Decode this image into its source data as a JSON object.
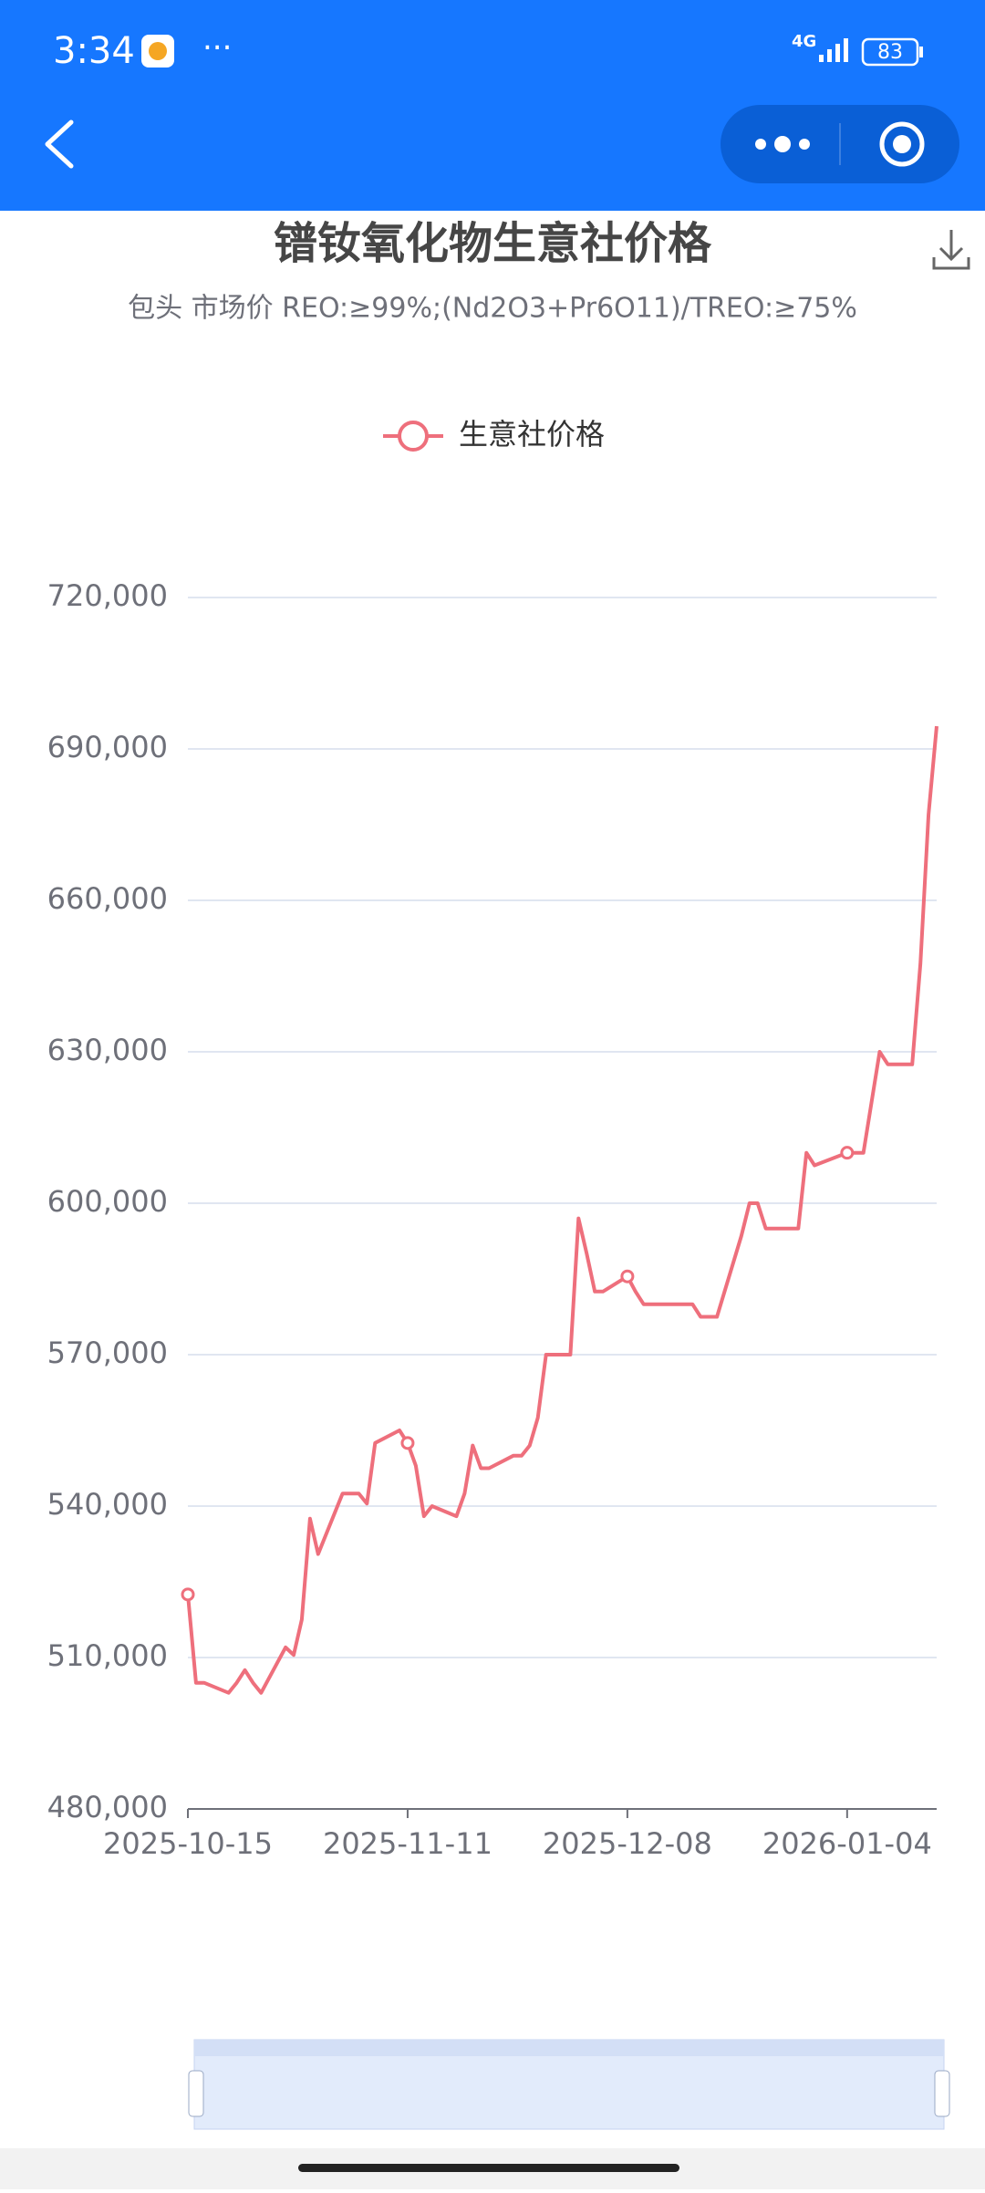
{
  "status_bar": {
    "time": "3:34",
    "network": "4G",
    "battery": "83"
  },
  "chart_data": {
    "type": "line",
    "title": "镨钕氧化物生意社价格",
    "subtitle": "包头 市场价 REO:≥99%;(Nd2O3+Pr6O11)/TREO:≥75%",
    "x": [
      "2025-10-15",
      "2025-10-16",
      "2025-10-17",
      "2025-10-20",
      "2025-10-21",
      "2025-10-22",
      "2025-10-23",
      "2025-10-24",
      "2025-10-27",
      "2025-10-28",
      "2025-10-29",
      "2025-10-30",
      "2025-10-31",
      "2025-11-03",
      "2025-11-04",
      "2025-11-05",
      "2025-11-06",
      "2025-11-07",
      "2025-11-10",
      "2025-11-11",
      "2025-11-12",
      "2025-11-13",
      "2025-11-14",
      "2025-11-17",
      "2025-11-18",
      "2025-11-19",
      "2025-11-20",
      "2025-11-21",
      "2025-11-24",
      "2025-11-25",
      "2025-11-26",
      "2025-11-27",
      "2025-11-28",
      "2025-12-01",
      "2025-12-02",
      "2025-12-03",
      "2025-12-04",
      "2025-12-05",
      "2025-12-08",
      "2025-12-09",
      "2025-12-10",
      "2025-12-11",
      "2025-12-12",
      "2025-12-15",
      "2025-12-16",
      "2025-12-17",
      "2025-12-18",
      "2025-12-19",
      "2025-12-22",
      "2025-12-23",
      "2025-12-24",
      "2025-12-25",
      "2025-12-26",
      "2025-12-29",
      "2025-12-30",
      "2025-12-31",
      "2026-01-04",
      "2026-01-05",
      "2026-01-06",
      "2026-01-07",
      "2026-01-08",
      "2026-01-09",
      "2026-01-12",
      "2026-01-13",
      "2026-01-14",
      "2026-01-15"
    ],
    "series": [
      {
        "name": "生意社价格",
        "color": "#ee6f7c",
        "values": [
          522500,
          505000,
          505000,
          503000,
          505000,
          507500,
          505000,
          503000,
          512000,
          510500,
          517500,
          537500,
          530500,
          542500,
          542500,
          542500,
          540500,
          552500,
          555000,
          552500,
          548000,
          538000,
          540000,
          538000,
          542500,
          552000,
          547500,
          547500,
          550000,
          550000,
          552000,
          557500,
          570000,
          570000,
          597000,
          590000,
          582500,
          582500,
          585500,
          582500,
          580000,
          580000,
          580000,
          580000,
          580000,
          577500,
          577500,
          577500,
          593500,
          600000,
          600000,
          595000,
          595000,
          595000,
          610000,
          607500,
          610000,
          610000,
          610000,
          620000,
          630000,
          627500,
          627500,
          647500,
          677000,
          694500
        ]
      }
    ],
    "xlim": [
      "2025-10-15",
      "2026-01-15"
    ],
    "xticks": [
      "2025-10-15",
      "2025-11-11",
      "2025-12-08",
      "2026-01-04"
    ],
    "ylim": [
      480000,
      720000
    ],
    "yticks": [
      {
        "value": 480000,
        "label": "480,000"
      },
      {
        "value": 510000,
        "label": "510,000"
      },
      {
        "value": 540000,
        "label": "540,000"
      },
      {
        "value": 570000,
        "label": "570,000"
      },
      {
        "value": 600000,
        "label": "600,000"
      },
      {
        "value": 630000,
        "label": "630,000"
      },
      {
        "value": 660000,
        "label": "660,000"
      },
      {
        "value": 690000,
        "label": "690,000"
      },
      {
        "value": 720000,
        "label": "720,000"
      }
    ],
    "grid": true,
    "legend": "top"
  }
}
